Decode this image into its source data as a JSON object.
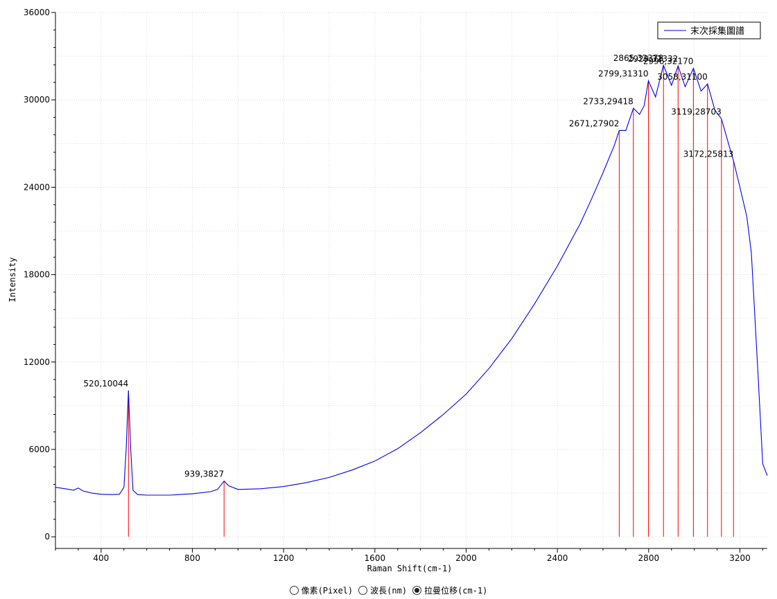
{
  "chart_data": {
    "type": "line",
    "title": "",
    "xlabel": "Raman Shift(cm-1)",
    "ylabel": "Intensity",
    "xlim": [
      200,
      3320
    ],
    "ylim": [
      -800,
      36000
    ],
    "x_ticks": [
      400,
      800,
      1200,
      1600,
      2000,
      2400,
      2800,
      3200
    ],
    "y_ticks": [
      0,
      6000,
      12000,
      18000,
      24000,
      30000,
      36000
    ],
    "grid": true,
    "legend": {
      "position": "top-right",
      "entries": [
        "末次採集圖譜"
      ]
    },
    "series": [
      {
        "name": "末次採集圖譜",
        "color": "#0000ee",
        "points": [
          [
            200,
            3400
          ],
          [
            250,
            3280
          ],
          [
            280,
            3200
          ],
          [
            300,
            3350
          ],
          [
            320,
            3150
          ],
          [
            360,
            3000
          ],
          [
            400,
            2920
          ],
          [
            450,
            2900
          ],
          [
            480,
            2920
          ],
          [
            500,
            3400
          ],
          [
            510,
            6000
          ],
          [
            520,
            10044
          ],
          [
            530,
            6000
          ],
          [
            540,
            3200
          ],
          [
            560,
            2900
          ],
          [
            600,
            2860
          ],
          [
            700,
            2860
          ],
          [
            800,
            2950
          ],
          [
            880,
            3100
          ],
          [
            910,
            3250
          ],
          [
            939,
            3827
          ],
          [
            960,
            3500
          ],
          [
            1000,
            3250
          ],
          [
            1100,
            3300
          ],
          [
            1200,
            3450
          ],
          [
            1300,
            3720
          ],
          [
            1400,
            4080
          ],
          [
            1500,
            4580
          ],
          [
            1600,
            5200
          ],
          [
            1700,
            6050
          ],
          [
            1800,
            7150
          ],
          [
            1900,
            8400
          ],
          [
            2000,
            9800
          ],
          [
            2100,
            11550
          ],
          [
            2200,
            13600
          ],
          [
            2300,
            16000
          ],
          [
            2400,
            18600
          ],
          [
            2500,
            21500
          ],
          [
            2550,
            23200
          ],
          [
            2600,
            25000
          ],
          [
            2650,
            26900
          ],
          [
            2671,
            27902
          ],
          [
            2700,
            27900
          ],
          [
            2733,
            29418
          ],
          [
            2760,
            29000
          ],
          [
            2780,
            29600
          ],
          [
            2799,
            31310
          ],
          [
            2830,
            30200
          ],
          [
            2865,
            32378
          ],
          [
            2900,
            31000
          ],
          [
            2929,
            32332
          ],
          [
            2960,
            30900
          ],
          [
            2996,
            32170
          ],
          [
            3030,
            30600
          ],
          [
            3058,
            31100
          ],
          [
            3090,
            29300
          ],
          [
            3119,
            28703
          ],
          [
            3150,
            27000
          ],
          [
            3172,
            25813
          ],
          [
            3200,
            24000
          ],
          [
            3230,
            22000
          ],
          [
            3250,
            19500
          ],
          [
            3280,
            11000
          ],
          [
            3300,
            5000
          ],
          [
            3320,
            4200
          ]
        ]
      }
    ],
    "peaks": [
      {
        "x": 520,
        "y": 10044,
        "label": "520,10044"
      },
      {
        "x": 939,
        "y": 3827,
        "label": "939,3827"
      },
      {
        "x": 2671,
        "y": 27902,
        "label": "2671,27902"
      },
      {
        "x": 2733,
        "y": 29418,
        "label": "2733,29418"
      },
      {
        "x": 2799,
        "y": 31310,
        "label": "2799,31310"
      },
      {
        "x": 2865,
        "y": 32378,
        "label": "2865,32378"
      },
      {
        "x": 2929,
        "y": 32332,
        "label": "2929,32332"
      },
      {
        "x": 2996,
        "y": 32170,
        "label": "2996,32170"
      },
      {
        "x": 3058,
        "y": 31100,
        "label": "3058,31100"
      },
      {
        "x": 3119,
        "y": 28703,
        "label": "3119,28703"
      },
      {
        "x": 3172,
        "y": 25813,
        "label": "3172,25813"
      }
    ],
    "peak_line_color": "#ff0000"
  },
  "mode_options": [
    {
      "label": "像素(Pixel)",
      "selected": false
    },
    {
      "label": "波長(nm)",
      "selected": false
    },
    {
      "label": "拉曼位移(cm-1)",
      "selected": true
    }
  ]
}
